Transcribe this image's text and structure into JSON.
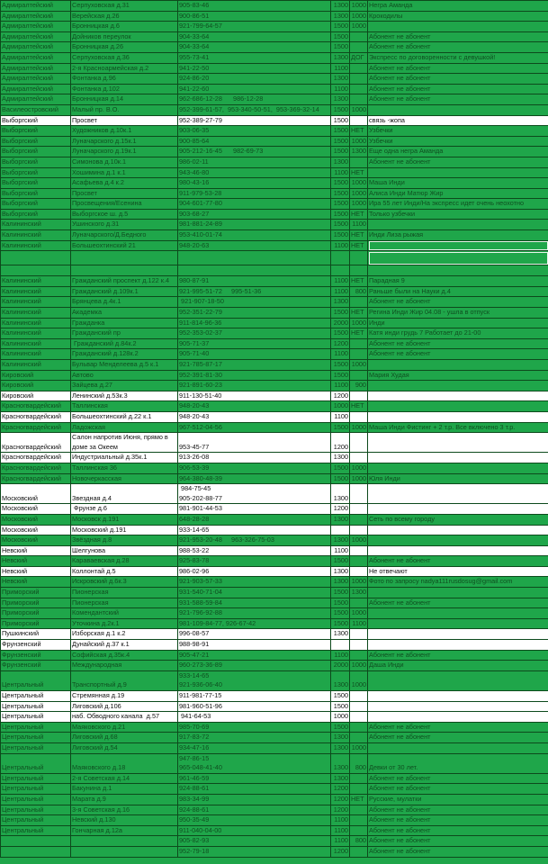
{
  "colors": {
    "green": "#1fa64a",
    "white": "#ffffff",
    "grid": "#0d4a1c"
  },
  "selected_cells": [
    23,
    24
  ],
  "rows": [
    {
      "district": "Адмиралтейский",
      "address": "Серпуховская д.31",
      "phone": "905-83-46",
      "price": "1300",
      "extra": "1000",
      "note": "Негра Аманда"
    },
    {
      "district": "Адмиралтейский",
      "address": "Верейская д.26",
      "phone": "900-86-51",
      "price": "1300",
      "extra": "1000",
      "note": "Крокодилы"
    },
    {
      "district": "Адмиралтейский",
      "address": "Бронницкая д.6",
      "phone": "921-799-64-57",
      "price": "1500",
      "extra": "1000",
      "note": ""
    },
    {
      "district": "Адмиралтейский",
      "address": "Дойников переулок",
      "phone": "904-33-64",
      "price": "1500",
      "extra": "",
      "note": "Абонент не абонент"
    },
    {
      "district": "Адмиралтейский",
      "address": "Бронницкая д.26",
      "phone": "904-33-64",
      "price": "1500",
      "extra": "",
      "note": "Абонент не абонент"
    },
    {
      "district": "Адмиралтейский",
      "address": "Серпуховская д.36",
      "phone": "955-73-41",
      "price": "1300",
      "extra": "ДОГ",
      "note": "Экспресс по договоренности с девушкой!"
    },
    {
      "district": "Адмиралтейский",
      "address": "2-я Красноармейская д.2",
      "phone": "941-22-50",
      "price": "1100",
      "extra": "",
      "note": "Абонент не абонент"
    },
    {
      "district": "Адмиралтейский",
      "address": "Фонтанка д.96",
      "phone": "924-86-20",
      "price": "1300",
      "extra": "",
      "note": "Абонент не абонент"
    },
    {
      "district": "Адмиралтейский",
      "address": "Фонтанка д.102",
      "phone": "941-22-60",
      "price": "1100",
      "extra": "",
      "note": "Абонент не абонент"
    },
    {
      "district": "Адмиралтейский",
      "address": "Бронницкая д.14",
      "phone": "962-686-12-28      986-12-28",
      "price": "1300",
      "extra": "",
      "note": "Абонент не абонент"
    },
    {
      "district": "Василеостровский",
      "address": "Малый пр. В.О.",
      "phone": "952-399-61-57,  953-340-50-51,  953-369-32-14",
      "price": "1500",
      "extra": "1000",
      "note": ""
    },
    {
      "fill": "white",
      "district": "Выборгский",
      "address": "Просвет",
      "phone": "952-389-27-79",
      "price": "1500",
      "extra": "",
      "note": "связь -жопа"
    },
    {
      "district": "Выборгский",
      "address": "Художников д.10к.1",
      "phone": "903-06-35",
      "price": "1500",
      "extra": "НЕТ",
      "note": "Узбечки"
    },
    {
      "district": "Выборгский",
      "address": "Луначарского д.15к.1",
      "phone": "900-85-64",
      "price": "1500",
      "extra": "1000",
      "note": "Узбечки"
    },
    {
      "district": "Выборгский",
      "address": "Луначарского д.19к.1",
      "phone": "905-212-16-45      982-69-73",
      "price": "1500",
      "extra": "1300",
      "note": "Еще одна негра Аманда"
    },
    {
      "district": "Выборгский",
      "address": "Симонова д.10к.1",
      "phone": "986-02-11",
      "price": "1300",
      "extra": "",
      "note": "Абонент не абонент"
    },
    {
      "district": "Выборгский",
      "address": "Хошимина д.1 к.1",
      "phone": "943-46-80",
      "price": "1100",
      "extra": "НЕТ",
      "note": ""
    },
    {
      "district": "Выборгский",
      "address": "Асафьева д.4 к.2",
      "phone": "980-43-16",
      "price": "1500",
      "extra": "1000",
      "note": "Маша Инди"
    },
    {
      "district": "Выборгский",
      "address": "Просвет",
      "phone": "911-979-53-28",
      "price": "1500",
      "extra": "1000",
      "note": "Алиса Инди Матюр Жир"
    },
    {
      "district": "Выборгский",
      "address": "Просвещения/Есенина",
      "phone": "904-601-77-80",
      "price": "1500",
      "extra": "1000",
      "note": "Ира 55 лет Инди/На экспресс идет очень неохотно"
    },
    {
      "district": "Выборгский",
      "address": "Выборгское ш. д.5",
      "phone": "903-68-27",
      "price": "1500",
      "extra": "НЕТ",
      "note": "Только узбечки"
    },
    {
      "district": "Калининский",
      "address": "Ушинского д.31",
      "phone": "981-881-24-89",
      "price": "1500",
      "extra": "1100",
      "note": ""
    },
    {
      "district": "Калининский",
      "address": "Луначарского/Д.Бедного",
      "phone": "953-410-01-74",
      "price": "1500",
      "extra": "НЕТ",
      "note": "Инди Лиза рыжая"
    },
    {
      "district": "Калининский",
      "address": "Большеохтинский 21",
      "phone": "948-20-63",
      "price": "1100",
      "extra": "НЕТ",
      "note": ""
    },
    {
      "district": "",
      "address": "",
      "phone": "",
      "price": "",
      "extra": "",
      "note": ""
    },
    {
      "district": "",
      "address": "",
      "phone": "",
      "price": "",
      "extra": "",
      "note": ""
    },
    {
      "district": "Калининский",
      "address": "Гражданский проспект д.122 к.4",
      "phone": "980-87-91",
      "price": "1100",
      "extra": "НЕТ",
      "note": "Парадная 9"
    },
    {
      "district": "Калининский",
      "address": "Гражданский д.109к.1",
      "phone": "921-995-51-72     995-51-36",
      "price": "1100",
      "extra": "800",
      "note": "Раньше были на Науки д.4"
    },
    {
      "district": "Калининский",
      "address": "Брянцева д.4к.1",
      "phone": " 921-907-18-50",
      "price": "1300",
      "extra": "",
      "note": "Абонент не абонент"
    },
    {
      "district": "Калининский",
      "address": "Академка",
      "phone": "952-351-22-79",
      "price": "1500",
      "extra": "НЕТ",
      "note": "Регина Инди Жир 04.08 - ушла в отпуск"
    },
    {
      "district": "Калининский",
      "address": "Гражданка",
      "phone": "911-814-96-36",
      "price": "2000",
      "extra": "1000",
      "note": "Инди"
    },
    {
      "district": "Калининский",
      "address": "Гражданский пр",
      "phone": "952-353-02-37",
      "price": "1500",
      "extra": "НЕТ",
      "note": "Катя инди грудь 7 Работает до 21-00"
    },
    {
      "district": "Калининский",
      "address": " Гражданский д.84к.2",
      "phone": "905-71-37",
      "price": "1200",
      "extra": "",
      "note": "Абонент не абонент"
    },
    {
      "district": "Калининский",
      "address": "Гражданский д.128к.2",
      "phone": "905-71-40",
      "price": "1100",
      "extra": "",
      "note": "Абонент не абонент"
    },
    {
      "district": "Калининский",
      "address": "Бульвар Менделеева д.5 к.1",
      "phone": "921-785-87-17",
      "price": "1500",
      "extra": "1000",
      "note": ""
    },
    {
      "district": "Кировский",
      "address": "Автово",
      "phone": "952-391-81-30",
      "price": "1500",
      "extra": "",
      "note": "Мария Худая"
    },
    {
      "district": "Кировский",
      "address": "Зайцева д.27",
      "phone": "921-891-60-23",
      "price": "1100",
      "extra": "900",
      "note": ""
    },
    {
      "fill": "white",
      "district": "Кировский",
      "address": "Ленинский д.53к.3",
      "phone": "911-130-51-40",
      "price": "1200",
      "extra": "",
      "note": ""
    },
    {
      "district": "Красногвардейский",
      "address": "Таллинская",
      "phone": "948-20-43",
      "price": "1000",
      "extra": "НЕТ",
      "note": ""
    },
    {
      "fill": "white",
      "district": "Красногвардейский",
      "address": "Большеохтинский д.22 к.1",
      "phone": "948-20-43",
      "price": "1100",
      "extra": "",
      "note": ""
    },
    {
      "district": "Красногвардейский",
      "address": "Ладожская",
      "phone": "967-512-04-56",
      "price": "1500",
      "extra": "1000",
      "note": "Маша Инди Фистинг + 2 т.р. Все включено 3 т.р."
    },
    {
      "fill": "white",
      "district": "Красногвардейский",
      "address": "Салон напротив Июня, прямо в доме за Океем",
      "phone": "953-45-77",
      "price": "1200",
      "extra": "",
      "note": ""
    },
    {
      "fill": "white",
      "district": "Красногвардейский",
      "address": "Индустриальный д.35к.1",
      "phone": "913-26-08",
      "price": "1300",
      "extra": "",
      "note": ""
    },
    {
      "district": "Красногвардейский",
      "address": "Таллинская 36",
      "phone": "906-53-39",
      "price": "1500",
      "extra": "1000",
      "note": ""
    },
    {
      "district": "Красногвардейский",
      "address": "Новочеркасская",
      "phone": "964-380-48-39",
      "price": "1500",
      "extra": "1000",
      "note": "Юля Инди"
    },
    {
      "fill": "white",
      "district": "Московский",
      "address": "Звездная д.4",
      "phone": " 984-75-45\n905-202-88-77",
      "price": "1300",
      "extra": "",
      "note": ""
    },
    {
      "fill": "white",
      "district": "Московский",
      "address": " Фрунзе д.6",
      "phone": "981-901-44-53",
      "price": "1200",
      "extra": "",
      "note": ""
    },
    {
      "district": "Московский",
      "address": "Московск д.191",
      "phone": "648-28-28",
      "price": "1300",
      "extra": "",
      "note": "Сеть по всему городу"
    },
    {
      "fill": "white",
      "district": "Московский",
      "address": "Московский д.191",
      "phone": "933-14-65",
      "price": "",
      "extra": "",
      "note": ""
    },
    {
      "district": "Московский",
      "address": "Звёздная д.8",
      "phone": "921-953-20-48     963-326-75-03",
      "price": "1300",
      "extra": "1000",
      "note": ""
    },
    {
      "fill": "white",
      "district": "Невский",
      "address": "Шелгунова",
      "phone": "988-53-22",
      "price": "1100",
      "extra": "",
      "note": ""
    },
    {
      "district": "Невский",
      "address": "Караваевская д.28",
      "phone": "925-83-78",
      "price": "1500",
      "extra": "",
      "note": "Абонент не абонент"
    },
    {
      "fill": "white",
      "district": "Невский",
      "address": "Коллонтай д.5",
      "phone": "986-02-96",
      "price": "1300",
      "extra": "",
      "note": "Не отвечают"
    },
    {
      "district": "Невский",
      "address": "Искровский д.6к.3",
      "phone": "921-903-57-33",
      "price": "1300",
      "extra": "1000",
      "note": "Фото по запросу nadya111rusdosug@gmail.com"
    },
    {
      "district": "Приморский",
      "address": "Пионерская",
      "phone": "931-540-71-04",
      "price": "1500",
      "extra": "1300",
      "note": ""
    },
    {
      "district": "Приморский",
      "address": "Пионерская",
      "phone": "931-588-59-84",
      "price": "1500",
      "extra": "",
      "note": "Абонент не абонент"
    },
    {
      "district": "Приморский",
      "address": "Комендантский",
      "phone": "921-796-92-88",
      "price": "1500",
      "extra": "1000",
      "note": ""
    },
    {
      "district": "Приморский",
      "address": "Уточкина д.2к.1",
      "phone": "981-109-84-77, 926-67-42",
      "price": "1500",
      "extra": "1100",
      "note": ""
    },
    {
      "fill": "white",
      "district": "Пушкинский",
      "address": "Изборская д.1 к.2",
      "phone": "996-08-57",
      "price": "1300",
      "extra": "",
      "note": ""
    },
    {
      "fill": "white",
      "district": "Фрунзенский",
      "address": "Дунайский д.37 к.1",
      "phone": "988-98-91",
      "price": "",
      "extra": "",
      "note": ""
    },
    {
      "district": "Фрунзенский",
      "address": "Софийская д.35к.4",
      "phone": "905-47-21",
      "price": "1100",
      "extra": "",
      "note": "Абонент не абонент"
    },
    {
      "district": "Фрунзенский",
      "address": "Международная",
      "phone": "960-273-36-89",
      "price": "2000",
      "extra": "1000",
      "note": "Даша Инди"
    },
    {
      "district": "Центральный",
      "address": "Транспортный д.9",
      "phone": "933-14-65\n921-936-06-40",
      "price": "1300",
      "extra": "1000",
      "note": ""
    },
    {
      "fill": "white",
      "district": "Центральный",
      "address": "Стремянная д.19",
      "phone": "911-981-77-15",
      "price": "1500",
      "extra": "",
      "note": ""
    },
    {
      "fill": "white",
      "district": "Центральный",
      "address": "Лиговский д.106",
      "phone": "981-960-51-96",
      "price": "1500",
      "extra": "",
      "note": ""
    },
    {
      "fill": "white",
      "district": "Центральный",
      "address": "наб. Обводного канала  д.57",
      "phone": " 941-64-53",
      "price": "1000",
      "extra": "",
      "note": ""
    },
    {
      "district": "Центральный",
      "address": "Маяковского д.21",
      "phone": "985-70-69",
      "price": "1500",
      "extra": "",
      "note": "Абонент не абонент"
    },
    {
      "district": "Центральный",
      "address": "Лиговский д.68",
      "phone": "917-83-72",
      "price": "1300",
      "extra": "",
      "note": "Абонент не абонент"
    },
    {
      "district": "Центральный",
      "address": "Лиговский д.54",
      "phone": "934-47-16",
      "price": "1300",
      "extra": "1000",
      "note": ""
    },
    {
      "district": "Центральный",
      "address": "Маяковского д.18",
      "phone": "947-86-15\n965-048-41-40",
      "price": "1300",
      "extra": "800",
      "note": "Девки от 30 лет."
    },
    {
      "district": "Центральный",
      "address": "2-я Советская д.14",
      "phone": "961-46-59",
      "price": "1300",
      "extra": "",
      "note": "Абонент не абонент"
    },
    {
      "district": "Центральный",
      "address": "Бакунина д.1",
      "phone": "924-88-61",
      "price": "1200",
      "extra": "",
      "note": "Абонент не абонент"
    },
    {
      "district": "Центральный",
      "address": "Марата д.9",
      "phone": "983-34-99",
      "price": "1200",
      "extra": "НЕТ",
      "note": "Русские, мулатки"
    },
    {
      "district": "Центральный",
      "address": "3-я Советская д.16",
      "phone": "924-88-61",
      "price": "1200",
      "extra": "",
      "note": "Абонент не абонент"
    },
    {
      "district": "Центральный",
      "address": "Невский д.130",
      "phone": "950-35-49",
      "price": "1100",
      "extra": "",
      "note": "Абонент не абонент"
    },
    {
      "district": "Центральный",
      "address": "Гончарная д.12а",
      "phone": "911-040-04-00",
      "price": "1100",
      "extra": "",
      "note": "Абонент не абонент"
    },
    {
      "district": "",
      "address": "",
      "phone": "905-82-93",
      "price": "1100",
      "extra": "800",
      "note": "Абонент не абонент"
    },
    {
      "district": "",
      "address": "",
      "phone": "952-79-18",
      "price": "1200",
      "extra": "",
      "note": "Абонент не абонент"
    }
  ]
}
